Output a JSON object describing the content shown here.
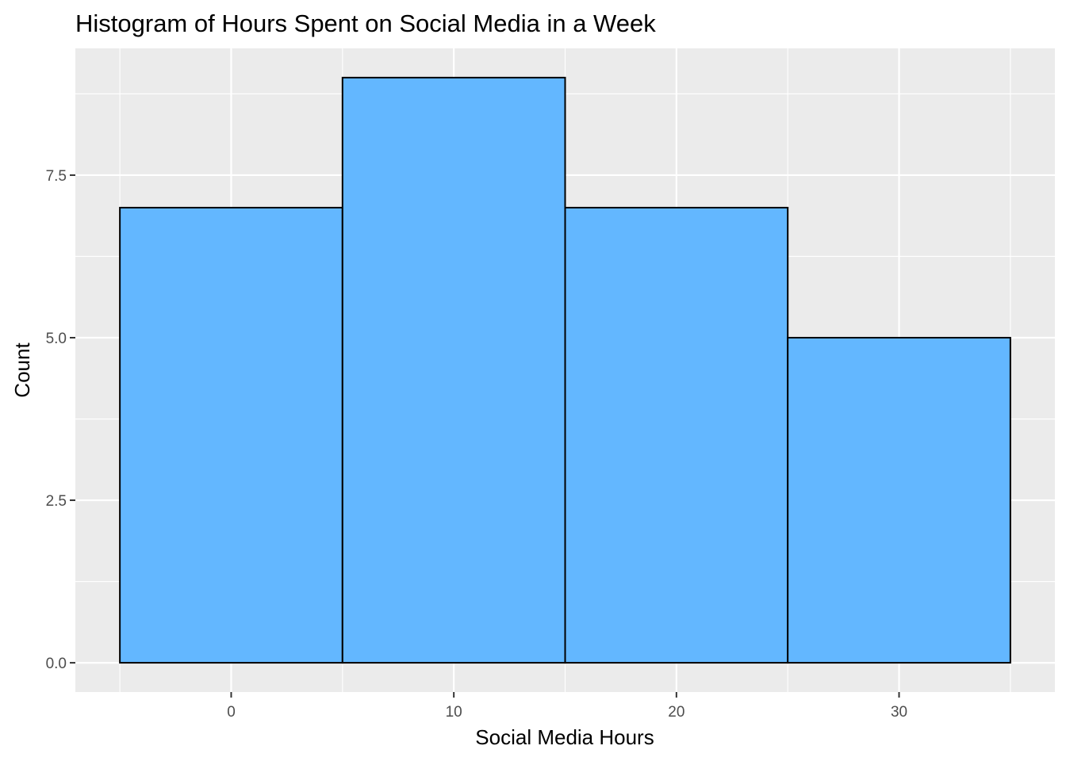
{
  "chart_data": {
    "type": "bar",
    "title": "Histogram of Hours Spent on Social Media in a Week",
    "xlabel": "Social Media Hours",
    "ylabel": "Count",
    "bins": [
      {
        "x_start": -5,
        "x_end": 5,
        "count": 7
      },
      {
        "x_start": 5,
        "x_end": 15,
        "count": 9
      },
      {
        "x_start": 15,
        "x_end": 25,
        "count": 7
      },
      {
        "x_start": 25,
        "x_end": 35,
        "count": 5
      }
    ],
    "xlim": [
      -7,
      37
    ],
    "ylim": [
      -0.45,
      9.45
    ],
    "x_ticks": [
      0,
      10,
      20,
      30
    ],
    "x_tick_labels": [
      "0",
      "10",
      "20",
      "30"
    ],
    "y_ticks": [
      0,
      2.5,
      5,
      7.5
    ],
    "y_tick_labels": [
      "0.0",
      "2.5",
      "5.0",
      "7.5"
    ],
    "x_minor_gridlines": [
      -5,
      5,
      15,
      25,
      35
    ],
    "y_minor_gridlines": [
      1.25,
      3.75,
      6.25,
      8.75
    ],
    "grid": true,
    "legend": "none",
    "colors": {
      "bar_fill": "#63b7ff",
      "bar_outline": "#000000",
      "panel_background": "#ebebeb",
      "gridline": "#ffffff"
    }
  }
}
